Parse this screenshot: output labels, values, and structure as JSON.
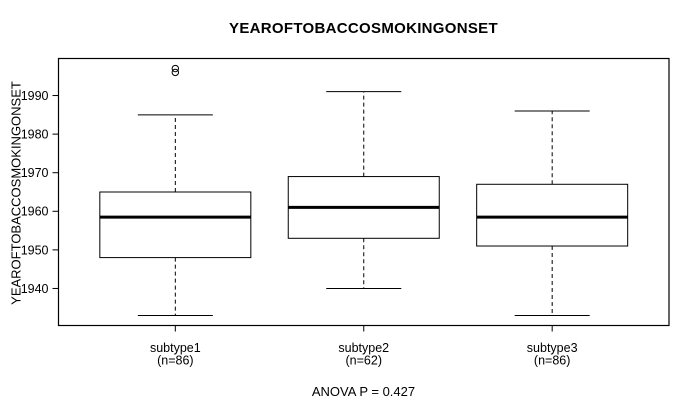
{
  "chart_data": {
    "type": "boxplot",
    "title": "YEAROFTOBACCOSMOKINGONSET",
    "xlabel": "",
    "ylabel": "YEAROFTOBACCOSMOKINGONSET",
    "annotation": "ANOVA P = 0.427",
    "ylim": [
      1930.4,
      1999.6
    ],
    "yticks": [
      1940,
      1950,
      1960,
      1970,
      1980,
      1990
    ],
    "grid": false,
    "legend": "none",
    "colors": {
      "line": "#000000",
      "box_fill": "#ffffff",
      "background": "#ffffff"
    },
    "groups": [
      {
        "label": "subtype1",
        "sublabel": "(n=86)",
        "n": 86,
        "lower_whisker": 1933,
        "q1": 1948,
        "median": 1958.5,
        "q3": 1965,
        "upper_whisker": 1985,
        "outliers": [
          1996,
          1997
        ]
      },
      {
        "label": "subtype2",
        "sublabel": "(n=62)",
        "n": 62,
        "lower_whisker": 1940,
        "q1": 1953,
        "median": 1961,
        "q3": 1969,
        "upper_whisker": 1991,
        "outliers": []
      },
      {
        "label": "subtype3",
        "sublabel": "(n=86)",
        "n": 86,
        "lower_whisker": 1933,
        "q1": 1951,
        "median": 1958.5,
        "q3": 1967,
        "upper_whisker": 1986,
        "outliers": []
      }
    ]
  }
}
